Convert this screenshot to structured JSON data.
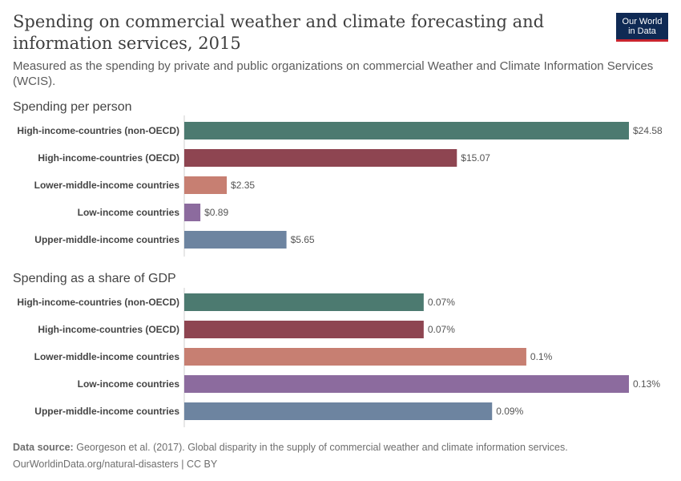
{
  "header": {
    "title": "Spending on commercial weather and climate forecasting and information services, 2015",
    "subtitle": "Measured as the spending by private and public organizations on commercial Weather and Climate Information Services (WCIS).",
    "logo_line1": "Our World",
    "logo_line2": "in Data"
  },
  "footer": {
    "source_label": "Data source:",
    "source_text": "Georgeson et al. (2017). Global disparity in the supply of commercial weather and climate information services.",
    "link_text": "OurWorldinData.org/natural-disasters | CC BY"
  },
  "colors": {
    "High-income-countries (non-OECD)": "#4c7a70",
    "High-income-countries (OECD)": "#8e4551",
    "Lower-middle-income countries": "#c77f72",
    "Low-income countries": "#8c6b9e",
    "Upper-middle-income countries": "#6d84a0"
  },
  "chart_data": [
    {
      "type": "bar",
      "orientation": "horizontal",
      "title": "Spending per person",
      "categories": [
        "High-income-countries (non-OECD)",
        "High-income-countries (OECD)",
        "Lower-middle-income countries",
        "Low-income countries",
        "Upper-middle-income countries"
      ],
      "values": [
        24.58,
        15.07,
        2.35,
        0.89,
        5.65
      ],
      "value_labels": [
        "$24.58",
        "$15.07",
        "$2.35",
        "$0.89",
        "$5.65"
      ],
      "xlim": [
        0,
        24.58
      ]
    },
    {
      "type": "bar",
      "orientation": "horizontal",
      "title": "Spending as a share of GDP",
      "categories": [
        "High-income-countries (non-OECD)",
        "High-income-countries (OECD)",
        "Lower-middle-income countries",
        "Low-income countries",
        "Upper-middle-income countries"
      ],
      "values": [
        0.07,
        0.07,
        0.1,
        0.13,
        0.09
      ],
      "value_labels": [
        "0.07%",
        "0.07%",
        "0.1%",
        "0.13%",
        "0.09%"
      ],
      "xlim": [
        0,
        0.13
      ]
    }
  ]
}
